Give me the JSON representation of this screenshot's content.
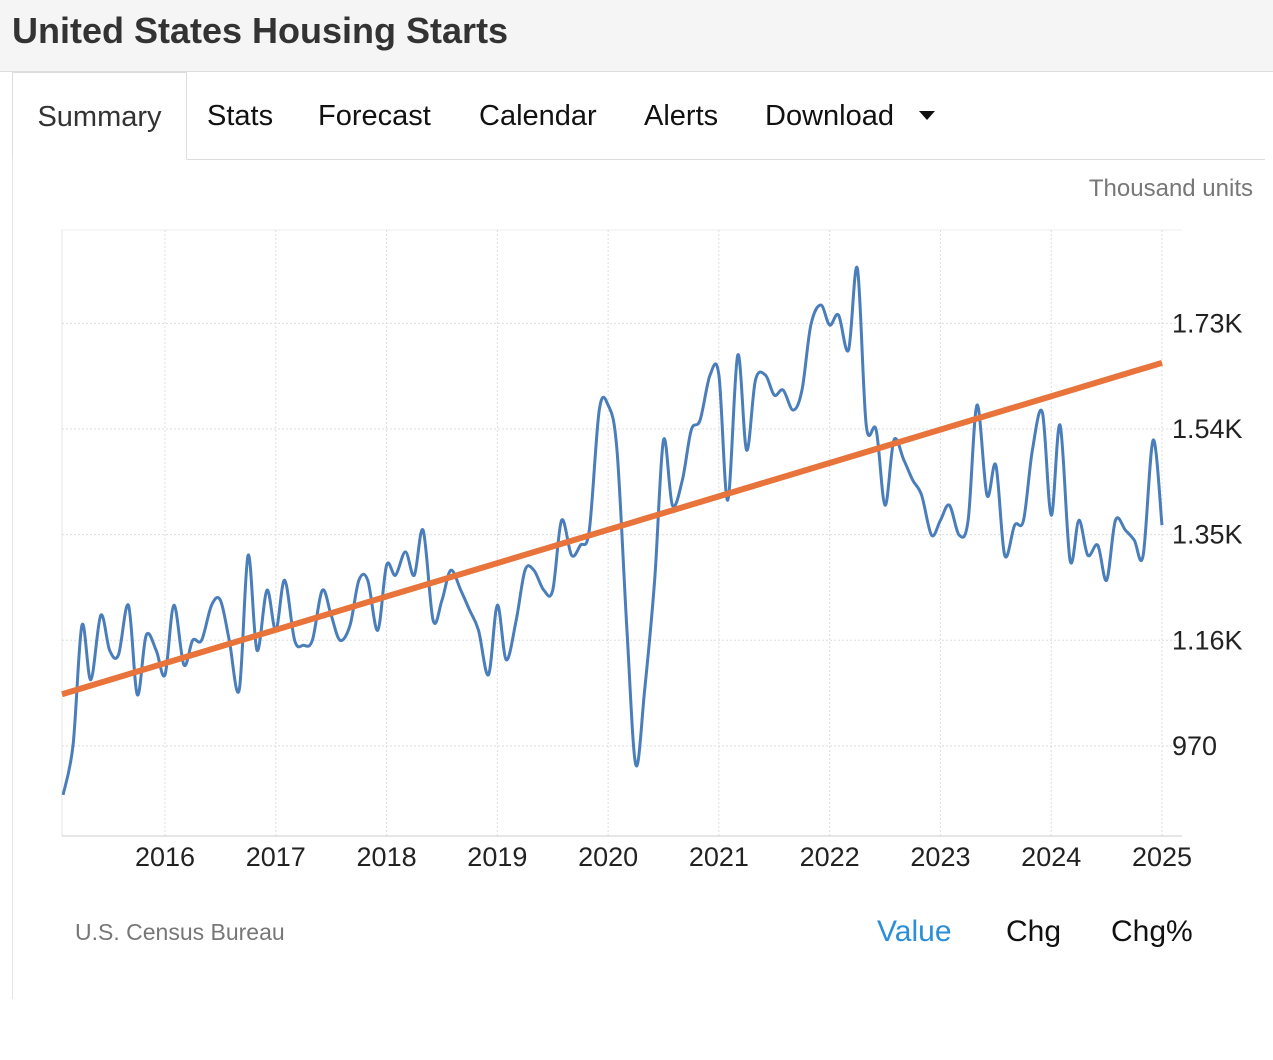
{
  "header": {
    "title": "United States Housing Starts"
  },
  "tabs": [
    "Summary",
    "Stats",
    "Forecast",
    "Calendar",
    "Alerts",
    "Download"
  ],
  "unit_label": "Thousand units",
  "chart_data": {
    "type": "line",
    "x": [
      2015.08,
      2015.17,
      2015.25,
      2015.33,
      2015.42,
      2015.5,
      2015.58,
      2015.67,
      2015.75,
      2015.83,
      2015.92,
      2016,
      2016.08,
      2016.17,
      2016.25,
      2016.33,
      2016.42,
      2016.5,
      2016.58,
      2016.67,
      2016.75,
      2016.83,
      2016.92,
      2017,
      2017.08,
      2017.17,
      2017.25,
      2017.33,
      2017.42,
      2017.5,
      2017.58,
      2017.67,
      2017.75,
      2017.83,
      2017.92,
      2018,
      2018.08,
      2018.17,
      2018.25,
      2018.33,
      2018.42,
      2018.5,
      2018.58,
      2018.67,
      2018.75,
      2018.83,
      2018.92,
      2019,
      2019.08,
      2019.17,
      2019.25,
      2019.33,
      2019.42,
      2019.5,
      2019.58,
      2019.67,
      2019.75,
      2019.83,
      2019.92,
      2020,
      2020.08,
      2020.17,
      2020.25,
      2020.33,
      2020.42,
      2020.5,
      2020.58,
      2020.67,
      2020.75,
      2020.83,
      2020.92,
      2021,
      2021.08,
      2021.17,
      2021.25,
      2021.33,
      2021.42,
      2021.5,
      2021.58,
      2021.67,
      2021.75,
      2021.83,
      2021.92,
      2022,
      2022.08,
      2022.17,
      2022.25,
      2022.33,
      2022.42,
      2022.5,
      2022.58,
      2022.67,
      2022.75,
      2022.83,
      2022.92,
      2023,
      2023.08,
      2023.17,
      2023.25,
      2023.33,
      2023.42,
      2023.5,
      2023.58,
      2023.67,
      2023.75,
      2023.83,
      2023.92,
      2024,
      2024.08,
      2024.17,
      2024.25,
      2024.33,
      2024.42,
      2024.5,
      2024.58,
      2024.67,
      2024.75,
      2024.83,
      2024.92,
      2025
    ],
    "series": [
      {
        "color": "#4a7ebb",
        "values": [
          882,
          972,
          1187,
          1089,
          1205,
          1142,
          1134,
          1223,
          1062,
          1169,
          1142,
          1098,
          1223,
          1116,
          1160,
          1160,
          1223,
          1232,
          1160,
          1071,
          1313,
          1142,
          1250,
          1178,
          1268,
          1160,
          1151,
          1160,
          1250,
          1205,
          1160,
          1187,
          1268,
          1268,
          1178,
          1295,
          1277,
          1319,
          1277,
          1358,
          1196,
          1232,
          1286,
          1250,
          1214,
          1178,
          1098,
          1223,
          1125,
          1196,
          1286,
          1286,
          1250,
          1250,
          1376,
          1313,
          1331,
          1358,
          1574,
          1583,
          1502,
          1178,
          936,
          1071,
          1268,
          1520,
          1403,
          1448,
          1538,
          1556,
          1637,
          1637,
          1412,
          1673,
          1502,
          1628,
          1637,
          1601,
          1610,
          1574,
          1610,
          1727,
          1763,
          1727,
          1745,
          1682,
          1829,
          1547,
          1538,
          1403,
          1520,
          1484,
          1448,
          1421,
          1349,
          1376,
          1403,
          1349,
          1376,
          1583,
          1421,
          1475,
          1313,
          1367,
          1376,
          1502,
          1570,
          1385,
          1547,
          1304,
          1376,
          1313,
          1331,
          1268,
          1376,
          1358,
          1340,
          1313,
          1520,
          1367
        ]
      }
    ],
    "trend": {
      "color": "#e8743b",
      "x": [
        2015.07,
        2025
      ],
      "values": [
        1063,
        1659
      ]
    },
    "xlim": [
      2015.07,
      2025
    ],
    "xticks": [
      2016,
      2017,
      2018,
      2019,
      2020,
      2021,
      2022,
      2023,
      2024,
      2025
    ],
    "ylim": [
      808,
      1898
    ],
    "yticks": [
      970,
      {
        "value": 1160,
        "label": "1.16K"
      },
      {
        "value": 1350,
        "label": "1.35K"
      },
      {
        "value": 1540,
        "label": "1.54K"
      },
      {
        "value": 1730,
        "label": "1.73K"
      }
    ],
    "grid": true
  },
  "source": "U.S. Census Bureau",
  "view_buttons": [
    "Value",
    "Chg",
    "Chg%"
  ]
}
